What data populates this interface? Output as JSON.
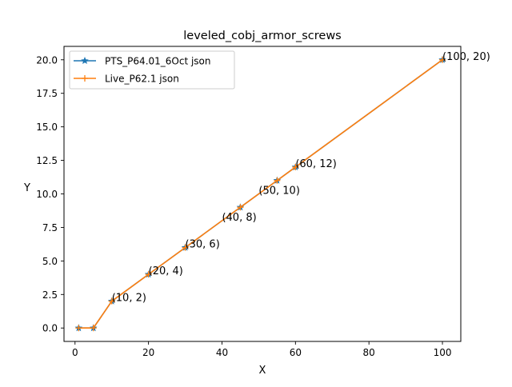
{
  "chart_data": {
    "type": "line",
    "title": "leveled_cobj_armor_screws",
    "xlabel": "X",
    "ylabel": "Y",
    "xlim": [
      -3,
      105
    ],
    "ylim": [
      -1,
      21
    ],
    "grid": false,
    "legend_position": "upper left",
    "x_ticks": [
      {
        "value": 0,
        "label": "0"
      },
      {
        "value": 20,
        "label": "20"
      },
      {
        "value": 40,
        "label": "40"
      },
      {
        "value": 60,
        "label": "60"
      },
      {
        "value": 80,
        "label": "80"
      },
      {
        "value": 100,
        "label": "100"
      }
    ],
    "y_ticks": [
      {
        "value": 0,
        "label": "0.0"
      },
      {
        "value": 2.5,
        "label": "2.5"
      },
      {
        "value": 5,
        "label": "5.0"
      },
      {
        "value": 7.5,
        "label": "7.5"
      },
      {
        "value": 10,
        "label": "10.0"
      },
      {
        "value": 12.5,
        "label": "12.5"
      },
      {
        "value": 15,
        "label": "15.0"
      },
      {
        "value": 17.5,
        "label": "17.5"
      },
      {
        "value": 20,
        "label": "20.0"
      }
    ],
    "series": [
      {
        "name": "PTS_P64.01_6Oct json",
        "color": "#1f77b4",
        "marker": "star",
        "x": [
          1,
          5,
          10,
          20,
          30,
          45,
          55,
          60,
          100
        ],
        "y": [
          0,
          0,
          2,
          4,
          6,
          9,
          11,
          12,
          20
        ]
      },
      {
        "name": "Live_P62.1 json",
        "color": "#ff7f0e",
        "marker": "plus",
        "x": [
          1,
          5,
          10,
          20,
          30,
          45,
          55,
          60,
          100
        ],
        "y": [
          0,
          0,
          2,
          4,
          6,
          9,
          11,
          12,
          20
        ]
      }
    ],
    "annotations": [
      {
        "x": 10,
        "y": 2,
        "text": "(10, 2)"
      },
      {
        "x": 20,
        "y": 4,
        "text": "(20, 4)"
      },
      {
        "x": 30,
        "y": 6,
        "text": "(30, 6)"
      },
      {
        "x": 40,
        "y": 8,
        "text": "(40, 8)"
      },
      {
        "x": 50,
        "y": 10,
        "text": "(50, 10)"
      },
      {
        "x": 60,
        "y": 12,
        "text": "(60, 12)"
      },
      {
        "x": 100,
        "y": 20,
        "text": "(100, 20)"
      }
    ]
  }
}
